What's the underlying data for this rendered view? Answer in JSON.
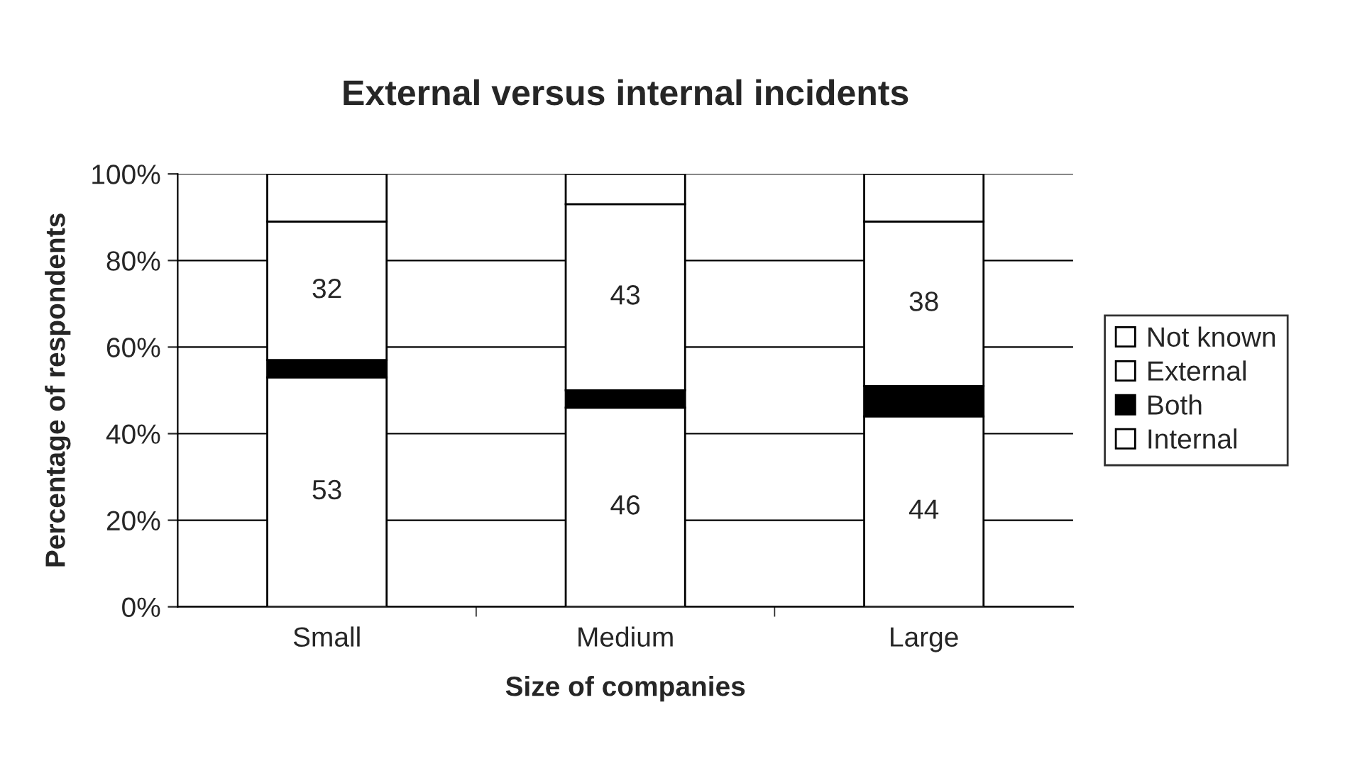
{
  "chart_data": {
    "type": "bar",
    "stacked": true,
    "title": "External versus internal incidents",
    "xlabel": "Size of companies",
    "ylabel": "Percentage of respondents",
    "categories": [
      "Small",
      "Medium",
      "Large"
    ],
    "series": [
      {
        "name": "Internal",
        "color": "#ffffff",
        "values": [
          53,
          46,
          44
        ],
        "value_labels": [
          "53",
          "46",
          "44"
        ]
      },
      {
        "name": "Both",
        "color": "#000000",
        "values": [
          4,
          4,
          7
        ]
      },
      {
        "name": "External",
        "color": "#ffffff",
        "values": [
          32,
          43,
          38
        ],
        "value_labels": [
          "32",
          "43",
          "38"
        ]
      },
      {
        "name": "Not known",
        "color": "#ffffff",
        "values": [
          11,
          7,
          11
        ]
      }
    ],
    "ylim": [
      0,
      100
    ],
    "yticks": [
      {
        "value": 0,
        "label": "0%"
      },
      {
        "value": 20,
        "label": "20%"
      },
      {
        "value": 40,
        "label": "40%"
      },
      {
        "value": 60,
        "label": "60%"
      },
      {
        "value": 80,
        "label": "80%"
      },
      {
        "value": 100,
        "label": "100%"
      }
    ],
    "grid": "y",
    "legend": "right"
  }
}
